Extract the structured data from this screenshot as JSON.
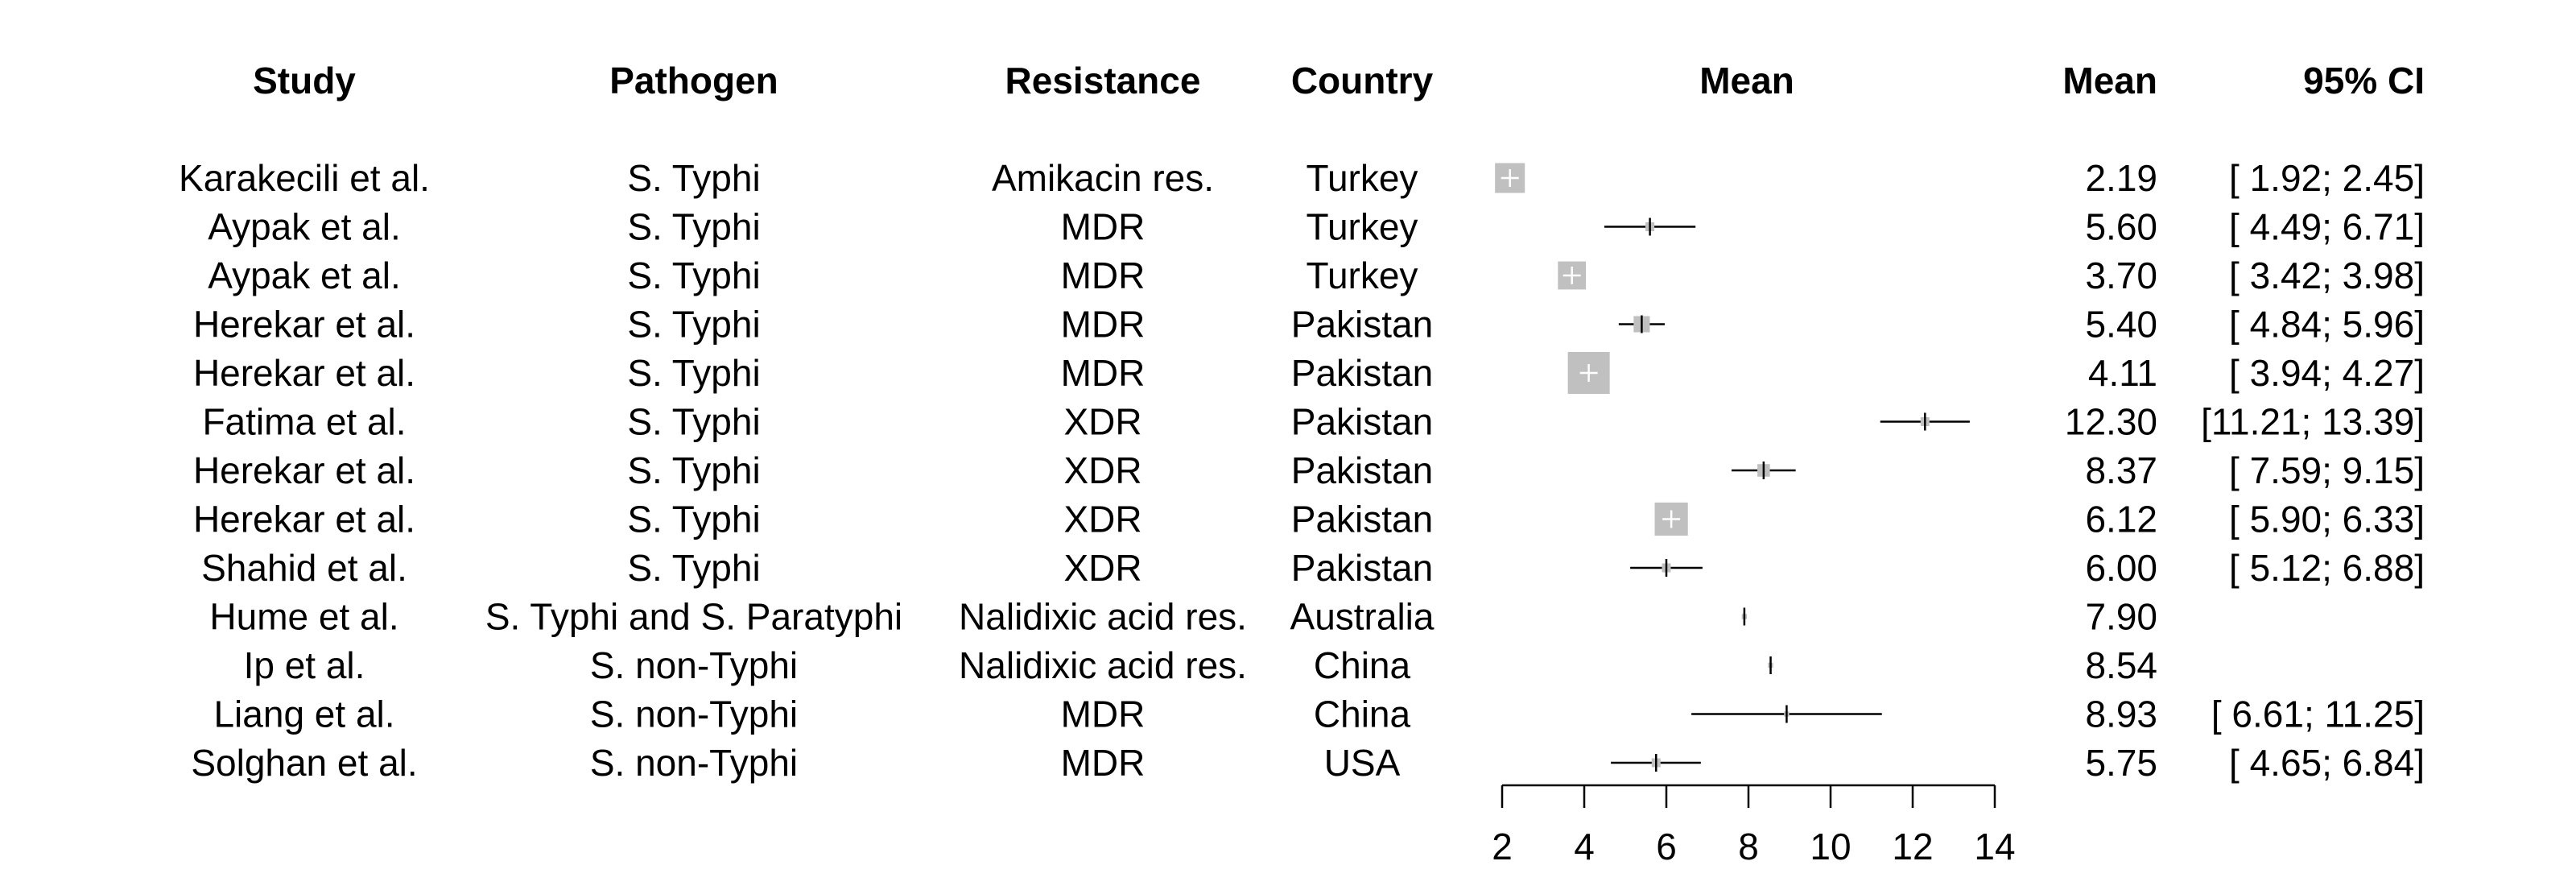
{
  "chart_data": {
    "type": "forest",
    "columns": {
      "study": "Study",
      "pathogen": "Pathogen",
      "resistance": "Resistance",
      "country": "Country",
      "plot": "Mean",
      "mean": "Mean",
      "ci": "95% CI"
    },
    "rows": [
      {
        "study": "Karakecili et al.",
        "pathogen": "S. Typhi",
        "resistance": "Amikacin res.",
        "country": "Turkey",
        "mean": 2.19,
        "lower": 1.92,
        "upper": 2.45,
        "mean_label": "2.19",
        "ci_label": "[ 1.92;  2.45]",
        "weight": 3.4
      },
      {
        "study": "Aypak et al.",
        "pathogen": "S. Typhi",
        "resistance": "MDR",
        "country": "Turkey",
        "mean": 5.6,
        "lower": 4.49,
        "upper": 6.71,
        "mean_label": "5.60",
        "ci_label": "[ 4.49;  6.71]",
        "weight": 0.3
      },
      {
        "study": "Aypak et al.",
        "pathogen": "S. Typhi",
        "resistance": "MDR",
        "country": "Turkey",
        "mean": 3.7,
        "lower": 3.42,
        "upper": 3.98,
        "mean_label": "3.70",
        "ci_label": "[ 3.42;  3.98]",
        "weight": 3.0
      },
      {
        "study": "Herekar et al.",
        "pathogen": "S. Typhi",
        "resistance": "MDR",
        "country": "Pakistan",
        "mean": 5.4,
        "lower": 4.84,
        "upper": 5.96,
        "mean_label": "5.40",
        "ci_label": "[ 4.84;  5.96]",
        "weight": 1.0
      },
      {
        "study": "Herekar et al.",
        "pathogen": "S. Typhi",
        "resistance": "MDR",
        "country": "Pakistan",
        "mean": 4.11,
        "lower": 3.94,
        "upper": 4.27,
        "mean_label": "4.11",
        "ci_label": "[ 3.94;  4.27]",
        "weight": 6.7
      },
      {
        "study": "Fatima et al.",
        "pathogen": "S. Typhi",
        "resistance": "XDR",
        "country": "Pakistan",
        "mean": 12.3,
        "lower": 11.21,
        "upper": 13.39,
        "mean_label": "12.30",
        "ci_label": "[11.21; 13.39]",
        "weight": 0.3
      },
      {
        "study": "Herekar et al.",
        "pathogen": "S. Typhi",
        "resistance": "XDR",
        "country": "Pakistan",
        "mean": 8.37,
        "lower": 7.59,
        "upper": 9.15,
        "mean_label": "8.37",
        "ci_label": "[ 7.59;  9.15]",
        "weight": 0.6
      },
      {
        "study": "Herekar et al.",
        "pathogen": "S. Typhi",
        "resistance": "XDR",
        "country": "Pakistan",
        "mean": 6.12,
        "lower": 5.9,
        "upper": 6.33,
        "mean_label": "6.12",
        "ci_label": "[ 5.90;  6.33]",
        "weight": 4.2
      },
      {
        "study": "Shahid et al.",
        "pathogen": "S. Typhi",
        "resistance": "XDR",
        "country": "Pakistan",
        "mean": 6.0,
        "lower": 5.12,
        "upper": 6.88,
        "mean_label": "6.00",
        "ci_label": "[ 5.12;  6.88]",
        "weight": 0.3
      },
      {
        "study": "Hume et al.",
        "pathogen": "S. Typhi and S. Paratyphi",
        "resistance": "Nalidixic acid res.",
        "country": "Australia",
        "mean": 7.9,
        "lower": 7.9,
        "upper": 7.9,
        "mean_label": "7.90",
        "ci_label": "",
        "weight": 0.1
      },
      {
        "study": "Ip et al.",
        "pathogen": "S. non-Typhi",
        "resistance": "Nalidixic acid res.",
        "country": "China",
        "mean": 8.54,
        "lower": 8.54,
        "upper": 8.54,
        "mean_label": "8.54",
        "ci_label": "",
        "weight": 0.1
      },
      {
        "study": "Liang et al.",
        "pathogen": "S. non-Typhi",
        "resistance": "MDR",
        "country": "China",
        "mean": 8.93,
        "lower": 6.61,
        "upper": 11.25,
        "mean_label": "8.93",
        "ci_label": "[ 6.61; 11.25]",
        "weight": 0.1
      },
      {
        "study": "Solghan et al.",
        "pathogen": "S. non-Typhi",
        "resistance": "MDR",
        "country": "USA",
        "mean": 5.75,
        "lower": 4.65,
        "upper": 6.84,
        "mean_label": "5.75",
        "ci_label": "[ 4.65;  6.84]",
        "weight": 0.3
      }
    ],
    "x_axis": {
      "min": 2,
      "max": 14,
      "ticks": [
        2,
        4,
        6,
        8,
        10,
        12,
        14
      ]
    },
    "colors": {
      "box": "#c0c0c0",
      "line": "#000000",
      "box_cross": "#ffffff"
    }
  }
}
